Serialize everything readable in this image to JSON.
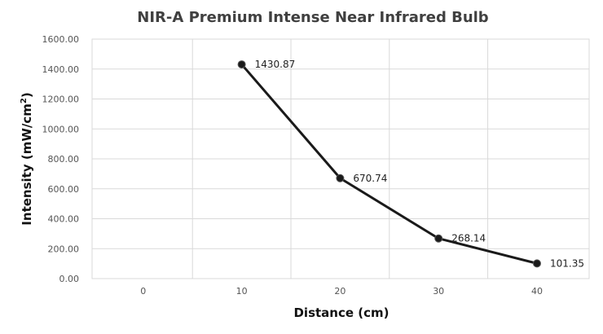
{
  "chart_data": {
    "type": "line",
    "title": "NIR-A Premium Intense Near Infrared Bulb",
    "xlabel": "Distance (cm)",
    "ylabel_main": "Intensity (mW/cm",
    "ylabel_sup": "2",
    "ylabel_end": ")",
    "x_ticks": [
      "0",
      "10",
      "20",
      "30",
      "40"
    ],
    "y_ticks": [
      "0.00",
      "200.00",
      "400.00",
      "600.00",
      "800.00",
      "1000.00",
      "1200.00",
      "1400.00",
      "1600.00"
    ],
    "ylim": [
      0,
      1600
    ],
    "grid": true,
    "legend": "none",
    "series": [
      {
        "x": [
          10,
          20,
          30,
          40
        ],
        "values": [
          1430.87,
          670.74,
          268.14,
          101.35
        ],
        "labels": [
          "1430.87",
          "670.74",
          "268.14",
          "101.35"
        ]
      }
    ]
  }
}
